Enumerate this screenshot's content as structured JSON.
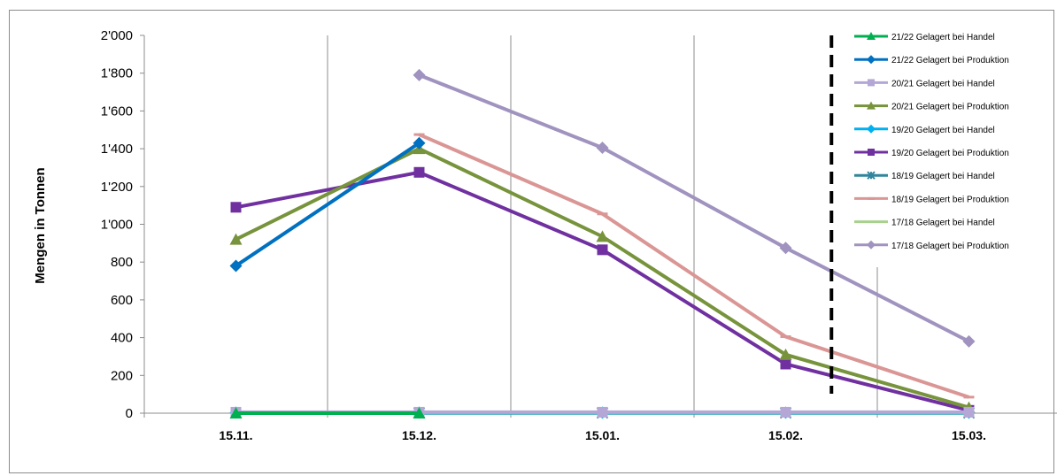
{
  "chart_data": {
    "type": "line",
    "title": "",
    "xlabel": "",
    "ylabel": "Mengen in Tonnen",
    "categories": [
      "15.11.",
      "15.12.",
      "15.01.",
      "15.02.",
      "15.03."
    ],
    "ylim": [
      0,
      2000
    ],
    "yticks": [
      0,
      200,
      400,
      600,
      800,
      1000,
      1200,
      1400,
      1600,
      1800,
      2000
    ],
    "ytick_labels": [
      "0",
      "200",
      "400",
      "600",
      "800",
      "1'000",
      "1'200",
      "1'400",
      "1'600",
      "1'800",
      "2'000"
    ],
    "grid": "vertical",
    "legend_position": "right",
    "marker_line_position": 3.75,
    "series": [
      {
        "name": "21/22 Gelagert bei Handel",
        "color": "#00b050",
        "marker": "triangle",
        "values": [
          0,
          0,
          null,
          null,
          null
        ]
      },
      {
        "name": "21/22 Gelagert bei Produktion",
        "color": "#0070c0",
        "marker": "diamond",
        "values": [
          780,
          1430,
          null,
          null,
          null
        ]
      },
      {
        "name": "20/21 Gelagert bei Handel",
        "color": "#b4a7d6",
        "marker": "square",
        "values": [
          5,
          5,
          5,
          5,
          5
        ]
      },
      {
        "name": "20/21 Gelagert bei Produktion",
        "color": "#77933c",
        "marker": "triangle",
        "values": [
          920,
          1400,
          935,
          310,
          30
        ]
      },
      {
        "name": "19/20 Gelagert bei Handel",
        "color": "#00b0f0",
        "marker": "diamond",
        "values": [
          3,
          3,
          3,
          3,
          3
        ]
      },
      {
        "name": "19/20 Gelagert bei Produktion",
        "color": "#7030a0",
        "marker": "square",
        "values": [
          1090,
          1275,
          865,
          260,
          15
        ]
      },
      {
        "name": "18/19 Gelagert bei Handel",
        "color": "#31859c",
        "marker": "star",
        "values": [
          null,
          2,
          2,
          2,
          2
        ]
      },
      {
        "name": "18/19 Gelagert bei Produktion",
        "color": "#da9694",
        "marker": "dash",
        "values": [
          null,
          1475,
          1055,
          405,
          85
        ]
      },
      {
        "name": "17/18 Gelagert bei Handel",
        "color": "#a9d18e",
        "marker": "none",
        "values": [
          null,
          1,
          1,
          1,
          1
        ]
      },
      {
        "name": "17/18 Gelagert bei Produktion",
        "color": "#a093bf",
        "marker": "diamond",
        "values": [
          null,
          1790,
          1405,
          875,
          380
        ]
      }
    ]
  }
}
